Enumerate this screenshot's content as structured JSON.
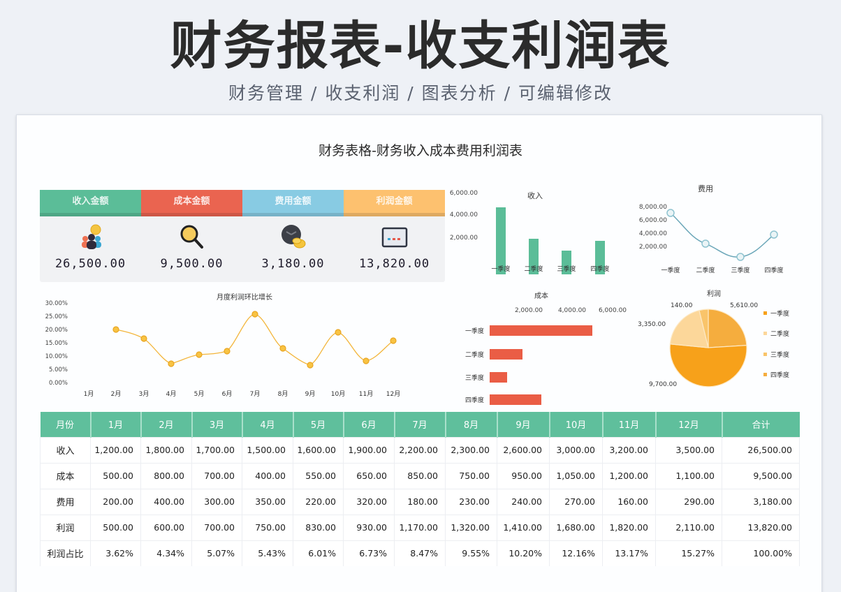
{
  "header": {
    "title": "财务报表-收支利润表",
    "subtitle": "财务管理 / 收支利润 / 图表分析 / 可编辑修改"
  },
  "panel": {
    "title": "财务表格-财务收入成本费用利润表"
  },
  "kpis": [
    {
      "label": "收入金额",
      "value": "26,500.00",
      "color": "#5bbd98",
      "icon": "people-coin-icon"
    },
    {
      "label": "成本金额",
      "value": "9,500.00",
      "color": "#ea6450",
      "icon": "magnifier-icon"
    },
    {
      "label": "费用金额",
      "value": "3,180.00",
      "color": "#88cbe3",
      "icon": "clock-coins-icon"
    },
    {
      "label": "利润金额",
      "value": "13,820.00",
      "color": "#fdc16f",
      "icon": "monitor-icon"
    }
  ],
  "colors": {
    "green": "#5bbd98",
    "red": "#ea5d45",
    "blue": "#88cbe3",
    "orange": "#fdc16f",
    "line_orange": "#f3b53a",
    "expense_line": "#6aa6b8"
  },
  "table": {
    "headers": [
      "月份",
      "1月",
      "2月",
      "3月",
      "4月",
      "5月",
      "6月",
      "7月",
      "8月",
      "9月",
      "10月",
      "11月",
      "12月",
      "合计"
    ],
    "rows": [
      {
        "label": "收入",
        "values": [
          "1,200.00",
          "1,800.00",
          "1,700.00",
          "1,500.00",
          "1,600.00",
          "1,900.00",
          "2,200.00",
          "2,300.00",
          "2,600.00",
          "3,000.00",
          "3,200.00",
          "3,500.00",
          "26,500.00"
        ]
      },
      {
        "label": "成本",
        "values": [
          "500.00",
          "800.00",
          "700.00",
          "400.00",
          "550.00",
          "650.00",
          "850.00",
          "750.00",
          "950.00",
          "1,050.00",
          "1,200.00",
          "1,100.00",
          "9,500.00"
        ]
      },
      {
        "label": "费用",
        "values": [
          "200.00",
          "400.00",
          "300.00",
          "350.00",
          "220.00",
          "320.00",
          "180.00",
          "230.00",
          "240.00",
          "270.00",
          "160.00",
          "290.00",
          "3,180.00"
        ]
      },
      {
        "label": "利润",
        "values": [
          "500.00",
          "600.00",
          "700.00",
          "750.00",
          "830.00",
          "930.00",
          "1,170.00",
          "1,320.00",
          "1,410.00",
          "1,680.00",
          "1,820.00",
          "2,110.00",
          "13,820.00"
        ]
      },
      {
        "label": "利润占比",
        "values": [
          "3.62%",
          "4.34%",
          "5.07%",
          "5.43%",
          "6.01%",
          "6.73%",
          "8.47%",
          "9.55%",
          "10.20%",
          "12.16%",
          "13.17%",
          "15.27%",
          "100.00%"
        ]
      }
    ]
  },
  "chart_data": [
    {
      "id": "income",
      "type": "bar",
      "title": "收入",
      "categories": [
        "一季度",
        "二季度",
        "三季度",
        "四季度"
      ],
      "values": [
        4700,
        1900,
        800,
        1700
      ],
      "yticks": [
        "2,000.00",
        "4,000.00",
        "6,000.00"
      ],
      "ylim": [
        0,
        6000
      ],
      "color": "#5bbd98"
    },
    {
      "id": "expense",
      "type": "line",
      "title": "费用",
      "categories": [
        "一季度",
        "二季度",
        "三季度",
        "四季度"
      ],
      "values": [
        7000,
        2500,
        400,
        4000
      ],
      "yticks": [
        "2,000.00",
        "4,000.00",
        "6,000.00",
        "8,000.00"
      ],
      "ylim": [
        0,
        8000
      ],
      "color": "#6aa6b8"
    },
    {
      "id": "monthly_growth",
      "type": "line",
      "title": "月度利润环比增长",
      "categories": [
        "1月",
        "2月",
        "3月",
        "4月",
        "5月",
        "6月",
        "7月",
        "8月",
        "9月",
        "10月",
        "11月",
        "12月"
      ],
      "values": [
        null,
        20.0,
        16.67,
        7.14,
        10.67,
        12.05,
        25.81,
        12.82,
        6.82,
        19.15,
        8.33,
        15.93
      ],
      "yticks": [
        "0.00%",
        "5.00%",
        "10.00%",
        "15.00%",
        "20.00%",
        "25.00%",
        "30.00%"
      ],
      "ylim": [
        0,
        30
      ],
      "ylabel": "%",
      "color": "#f3b53a"
    },
    {
      "id": "cost",
      "type": "bar",
      "orientation": "horizontal",
      "title": "成本",
      "categories": [
        "一季度",
        "二季度",
        "三季度",
        "四季度"
      ],
      "values": [
        4700,
        1500,
        800,
        2400
      ],
      "xticks": [
        "2,000.00",
        "4,000.00",
        "6,000.00"
      ],
      "xlim": [
        0,
        6000
      ],
      "color": "#ea5d45"
    },
    {
      "id": "profit",
      "type": "pie",
      "title": "利润",
      "categories": [
        "一季度",
        "二季度",
        "三季度",
        "四季度"
      ],
      "values": [
        9700,
        3350,
        140,
        5610
      ],
      "labels": [
        "9,700.00",
        "3,350.00",
        "140.00",
        "5,610.00"
      ],
      "colors": [
        "#f7a11a",
        "#fcd79a",
        "#f9c46a",
        "#f5ad3e"
      ],
      "legend_position": "right"
    }
  ]
}
